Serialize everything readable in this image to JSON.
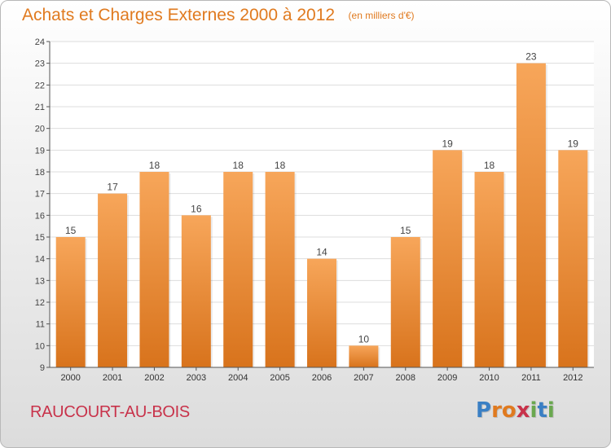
{
  "header": {
    "title": "Achats et Charges Externes 2000 à 2012",
    "unit": "(en milliers d'€)"
  },
  "footer": {
    "commune": "RAUCOURT-AU-BOIS",
    "logo": "Proxiti",
    "logo_colors": [
      "#3a7fc4",
      "#e07a1f",
      "#e07a1f",
      "#c8324a",
      "#6aa84f",
      "#3a7fc4",
      "#6aa84f"
    ]
  },
  "colors": {
    "title": "#e07a1f",
    "bar_top": "#f7a65a",
    "bar_bottom": "#d8731c",
    "grid": "#dddddd",
    "commune": "#c8324a"
  },
  "chart_data": {
    "type": "bar",
    "title": "Achats et Charges Externes 2000 à 2012",
    "subtitle": "(en milliers d'€)",
    "categories": [
      "2000",
      "2001",
      "2002",
      "2003",
      "2004",
      "2005",
      "2006",
      "2007",
      "2008",
      "2009",
      "2010",
      "2011",
      "2012"
    ],
    "values": [
      15,
      17,
      18,
      16,
      18,
      18,
      14,
      10,
      15,
      19,
      18,
      23,
      19
    ],
    "ylim": [
      9,
      24
    ],
    "yticks": [
      9,
      10,
      11,
      12,
      13,
      14,
      15,
      16,
      17,
      18,
      19,
      20,
      21,
      22,
      23,
      24
    ],
    "grid": true,
    "data_labels": true
  }
}
